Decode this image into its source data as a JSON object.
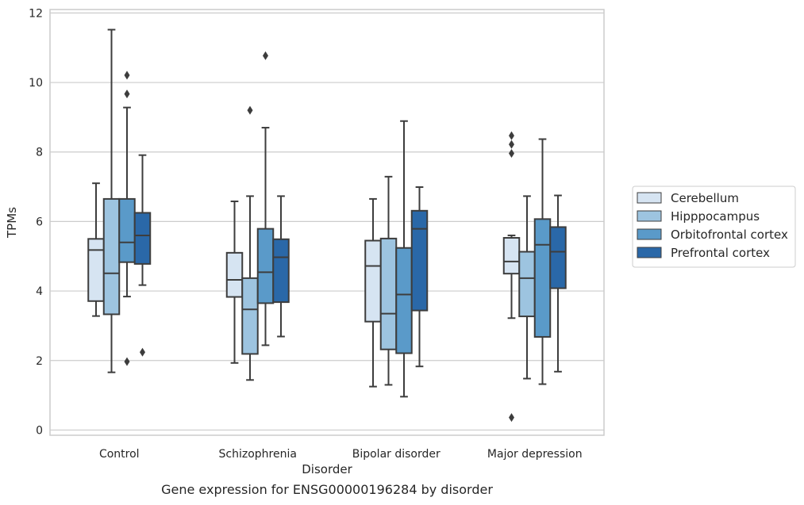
{
  "caption": "Gene expression for ENSG00000196284 by disorder",
  "chart_data": {
    "type": "box",
    "title": "",
    "xlabel": "Disorder",
    "ylabel": "TPMs",
    "ylim": [
      -0.15,
      12.1
    ],
    "yticks": [
      0,
      2,
      4,
      6,
      8,
      10,
      12
    ],
    "grid": "horizontal",
    "legend_position": "center-right outside",
    "categories": [
      "Control",
      "Schizophrenia",
      "Bipolar disorder",
      "Major depression"
    ],
    "series": [
      {
        "name": "Cerebellum",
        "color": "#d6e4f2",
        "boxes": [
          {
            "whislo": 3.28,
            "q1": 3.71,
            "med": 5.18,
            "q3": 5.5,
            "whishi": 7.1,
            "fliers": []
          },
          {
            "whislo": 1.93,
            "q1": 3.83,
            "med": 4.32,
            "q3": 5.1,
            "whishi": 6.58,
            "fliers": []
          },
          {
            "whislo": 1.25,
            "q1": 3.12,
            "med": 4.72,
            "q3": 5.45,
            "whishi": 6.65,
            "fliers": []
          },
          {
            "whislo": 3.22,
            "q1": 4.5,
            "med": 4.85,
            "q3": 5.53,
            "whishi": 5.6,
            "fliers": [
              8.47,
              8.22,
              7.96,
              0.36
            ]
          }
        ]
      },
      {
        "name": "Hipppocampus",
        "color": "#9dc4e0",
        "boxes": [
          {
            "whislo": 1.66,
            "q1": 3.33,
            "med": 4.51,
            "q3": 6.65,
            "whishi": 11.52,
            "fliers": []
          },
          {
            "whislo": 1.44,
            "q1": 2.19,
            "med": 3.47,
            "q3": 4.37,
            "whishi": 6.73,
            "fliers": [
              9.2
            ]
          },
          {
            "whislo": 1.3,
            "q1": 2.32,
            "med": 3.35,
            "q3": 5.51,
            "whishi": 7.29,
            "fliers": []
          },
          {
            "whislo": 1.48,
            "q1": 3.27,
            "med": 4.37,
            "q3": 5.13,
            "whishi": 6.73,
            "fliers": []
          }
        ]
      },
      {
        "name": "Orbitofrontal cortex",
        "color": "#5a9ac9",
        "boxes": [
          {
            "whislo": 3.84,
            "q1": 4.83,
            "med": 5.4,
            "q3": 6.65,
            "whishi": 9.28,
            "fliers": [
              10.21,
              9.67,
              1.97
            ]
          },
          {
            "whislo": 2.44,
            "q1": 3.65,
            "med": 4.54,
            "q3": 5.79,
            "whishi": 8.7,
            "fliers": [
              10.77
            ]
          },
          {
            "whislo": 0.96,
            "q1": 2.21,
            "med": 3.9,
            "q3": 5.24,
            "whishi": 8.89,
            "fliers": []
          },
          {
            "whislo": 1.32,
            "q1": 2.68,
            "med": 5.33,
            "q3": 6.07,
            "whishi": 8.37,
            "fliers": []
          }
        ]
      },
      {
        "name": "Prefrontal cortex",
        "color": "#2a68a8",
        "boxes": [
          {
            "whislo": 4.17,
            "q1": 4.78,
            "med": 5.6,
            "q3": 6.25,
            "whishi": 7.91,
            "fliers": [
              2.24
            ]
          },
          {
            "whislo": 2.69,
            "q1": 3.68,
            "med": 4.97,
            "q3": 5.49,
            "whishi": 6.73,
            "fliers": []
          },
          {
            "whislo": 1.83,
            "q1": 3.44,
            "med": 5.79,
            "q3": 6.31,
            "whishi": 6.99,
            "fliers": []
          },
          {
            "whislo": 1.68,
            "q1": 4.08,
            "med": 5.13,
            "q3": 5.84,
            "whishi": 6.75,
            "fliers": []
          }
        ]
      }
    ]
  }
}
